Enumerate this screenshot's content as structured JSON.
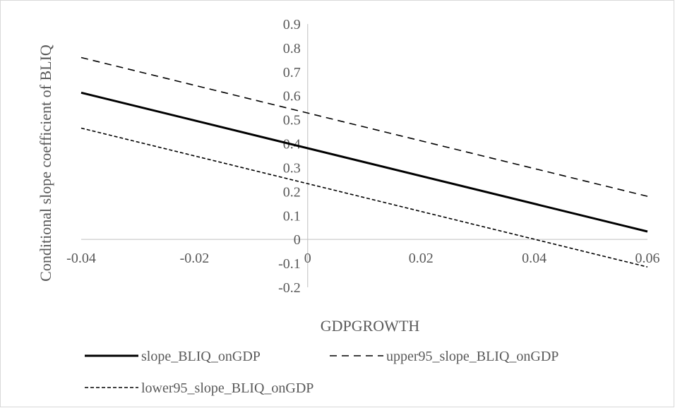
{
  "chart_data": {
    "type": "line",
    "title": "",
    "xlabel": "GDPGROWTH",
    "ylabel": "Conditional slope coefficient of BLIQ",
    "xlim": [
      -0.04,
      0.06
    ],
    "ylim": [
      -0.2,
      0.9
    ],
    "xticks": [
      -0.04,
      -0.02,
      0,
      0.02,
      0.04,
      0.06
    ],
    "xtick_labels": [
      "-0.04",
      "-0.02",
      "0",
      "0.02",
      "0.04",
      "0.06"
    ],
    "yticks": [
      -0.2,
      -0.1,
      0,
      0.1,
      0.2,
      0.3,
      0.4,
      0.5,
      0.6,
      0.7,
      0.8,
      0.9
    ],
    "ytick_labels": [
      "-0.2",
      "-0.1",
      "0",
      "0.1",
      "0.2",
      "0.3",
      "0.4",
      "0.5",
      "0.6",
      "0.7",
      "0.8",
      "0.9"
    ],
    "grid": false,
    "legend_position": "bottom",
    "series": [
      {
        "name": "slope_BLIQ_onGDP",
        "style": "solid",
        "color": "#000000",
        "x": [
          -0.04,
          0.06
        ],
        "y": [
          0.613,
          0.033
        ]
      },
      {
        "name": "upper95_slope_BLIQ_onGDP",
        "style": "dashed",
        "color": "#000000",
        "x": [
          -0.04,
          0.06
        ],
        "y": [
          0.76,
          0.18
        ]
      },
      {
        "name": "lower95_slope_BLIQ_onGDP",
        "style": "dotted",
        "color": "#000000",
        "x": [
          -0.04,
          0.06
        ],
        "y": [
          0.465,
          -0.115
        ]
      }
    ]
  }
}
